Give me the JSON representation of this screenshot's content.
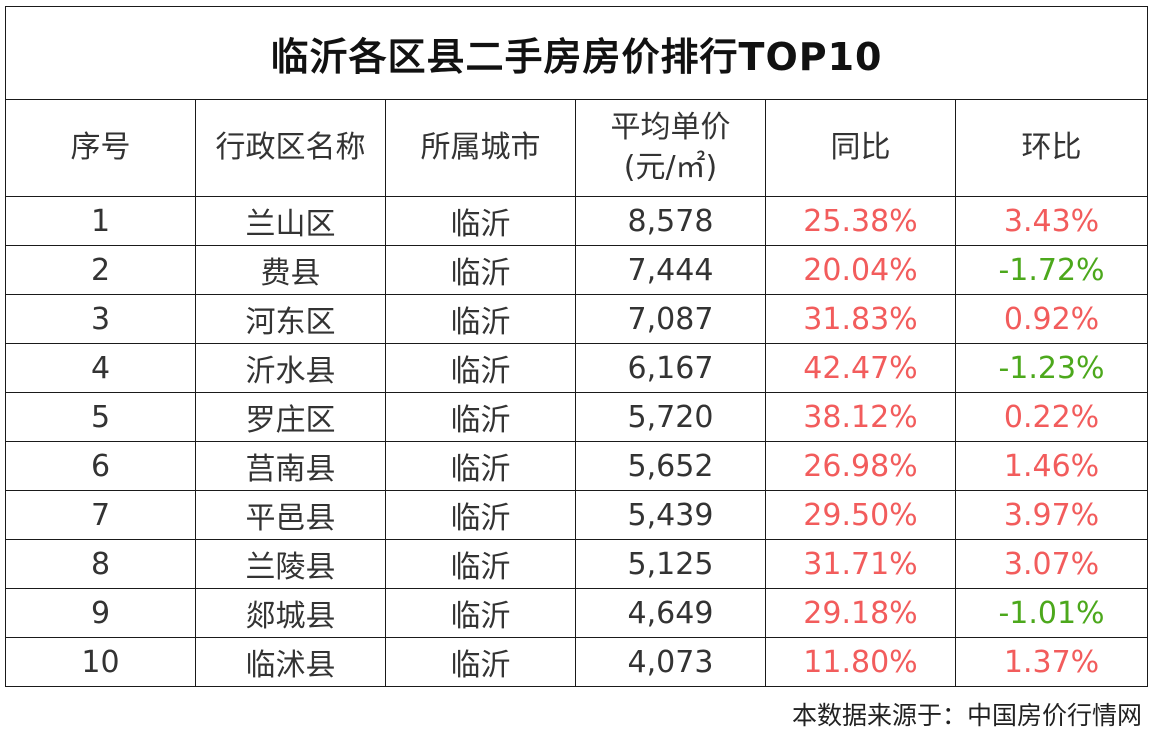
{
  "title": "临沂各区县二手房房价排行TOP10",
  "headers": {
    "index": "序号",
    "district": "行政区名称",
    "city": "所属城市",
    "price_line1": "平均单价",
    "price_line2": "(元/㎡)",
    "yoy": "同比",
    "mom": "环比"
  },
  "rows": [
    {
      "index": "1",
      "district": "兰山区",
      "city": "临沂",
      "price": "8,578",
      "yoy": "25.38%",
      "mom": "3.43%"
    },
    {
      "index": "2",
      "district": "费县",
      "city": "临沂",
      "price": "7,444",
      "yoy": "20.04%",
      "mom": "-1.72%"
    },
    {
      "index": "3",
      "district": "河东区",
      "city": "临沂",
      "price": "7,087",
      "yoy": "31.83%",
      "mom": "0.92%"
    },
    {
      "index": "4",
      "district": "沂水县",
      "city": "临沂",
      "price": "6,167",
      "yoy": "42.47%",
      "mom": "-1.23%"
    },
    {
      "index": "5",
      "district": "罗庄区",
      "city": "临沂",
      "price": "5,720",
      "yoy": "38.12%",
      "mom": "0.22%"
    },
    {
      "index": "6",
      "district": "莒南县",
      "city": "临沂",
      "price": "5,652",
      "yoy": "26.98%",
      "mom": "1.46%"
    },
    {
      "index": "7",
      "district": "平邑县",
      "city": "临沂",
      "price": "5,439",
      "yoy": "29.50%",
      "mom": "3.97%"
    },
    {
      "index": "8",
      "district": "兰陵县",
      "city": "临沂",
      "price": "5,125",
      "yoy": "31.71%",
      "mom": "3.07%"
    },
    {
      "index": "9",
      "district": "郯城县",
      "city": "临沂",
      "price": "4,649",
      "yoy": "29.18%",
      "mom": "-1.01%"
    },
    {
      "index": "10",
      "district": "临沭县",
      "city": "临沂",
      "price": "4,073",
      "yoy": "11.80%",
      "mom": "1.37%"
    }
  ],
  "source": "本数据来源于：中国房价行情网",
  "colors": {
    "positive": "#f25c5c",
    "negative": "#4ca81c",
    "text": "#333333",
    "border": "#1a1a1a"
  }
}
